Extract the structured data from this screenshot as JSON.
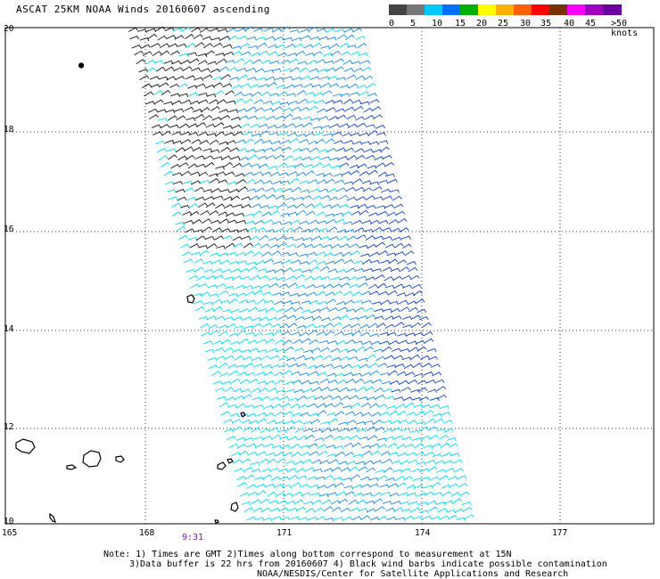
{
  "title": "ASCAT 25KM NOAA Winds 20160607 ascending",
  "legend": {
    "colors": [
      "#444444",
      "#777777",
      "#00c8ff",
      "#0070ff",
      "#00b000",
      "#ffff00",
      "#ffb000",
      "#ff6000",
      "#ff0000",
      "#7a3000",
      "#ff00ff",
      "#a000c0",
      "#6a00a0"
    ],
    "ticks": [
      "0",
      "5",
      "10",
      "15",
      "20",
      "25",
      "30",
      "35",
      "40",
      "45",
      ">50 knots"
    ]
  },
  "axes": {
    "lat_labels": [
      "20",
      "18",
      "16",
      "14",
      "12",
      "10"
    ],
    "lon_labels": [
      "165",
      "168",
      "171",
      "174",
      "177"
    ]
  },
  "time_label": "9:31",
  "notes": {
    "line1": "Note: 1) Times are GMT 2)Times along bottom correspond to measurement at 15N",
    "line2": "3)Data buffer is 22 hrs from 20160607 4) Black wind barbs indicate possible contamination",
    "line3": "NOAA/NESDIS/Center for Satellite Applications and Research"
  },
  "colors": {
    "contaminated": "#111111",
    "light_blue": "#00d8f0",
    "mid_blue": "#1a86e0",
    "dark_blue": "#1040c0",
    "grid": "#333333"
  }
}
